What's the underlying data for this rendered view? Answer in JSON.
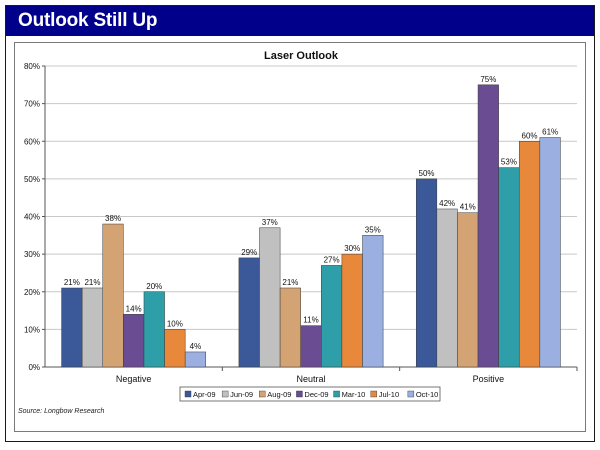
{
  "banner": {
    "title": "Outlook Still Up"
  },
  "source": "Source: Longbow Research",
  "colors": {
    "banner": "#00008b",
    "series": [
      "#3b5998",
      "#c0c0c0",
      "#d4a373",
      "#6a4c93",
      "#2e9fa8",
      "#e8883a",
      "#9bb0e0"
    ]
  },
  "chart_data": {
    "type": "bar",
    "title": "Laser Outlook",
    "xlabel": "",
    "ylabel": "",
    "ylim": [
      0,
      80
    ],
    "yticks": [
      "0%",
      "10%",
      "20%",
      "30%",
      "40%",
      "50%",
      "60%",
      "70%",
      "80%"
    ],
    "categories": [
      "Negative",
      "Neutral",
      "Positive"
    ],
    "series": [
      {
        "name": "Apr-09",
        "values": [
          21,
          29,
          50
        ],
        "labels": [
          "21%",
          "29%",
          "50%"
        ]
      },
      {
        "name": "Jun-09",
        "values": [
          21,
          37,
          42
        ],
        "labels": [
          "21%",
          "37%",
          "42%"
        ]
      },
      {
        "name": "Aug-09",
        "values": [
          38,
          21,
          41
        ],
        "labels": [
          "38%",
          "21%",
          "41%"
        ]
      },
      {
        "name": "Dec-09",
        "values": [
          14,
          11,
          75
        ],
        "labels": [
          "14%",
          "11%",
          "75%"
        ]
      },
      {
        "name": "Mar-10",
        "values": [
          20,
          27,
          53
        ],
        "labels": [
          "20%",
          "27%",
          "53%"
        ]
      },
      {
        "name": "Jul-10",
        "values": [
          10,
          30,
          60
        ],
        "labels": [
          "10%",
          "30%",
          "60%"
        ]
      },
      {
        "name": "Oct-10",
        "values": [
          4,
          35,
          61
        ],
        "labels": [
          "4%",
          "35%",
          "61%"
        ]
      }
    ],
    "legend_position": "bottom"
  }
}
